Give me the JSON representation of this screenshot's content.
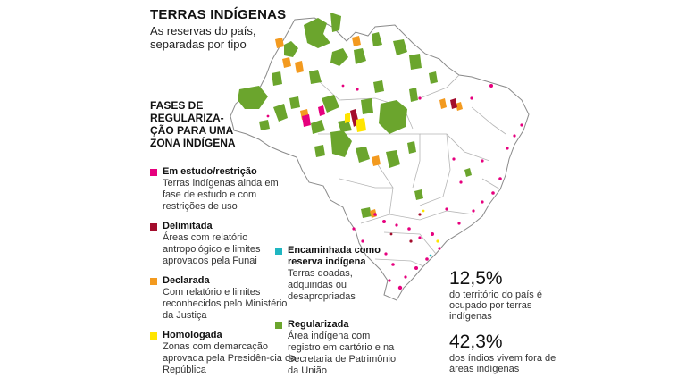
{
  "header": {
    "title": "TERRAS INDÍGENAS",
    "subtitle": "As reservas do país, separadas por tipo"
  },
  "phases_heading": "FASES DE REGULARIZA-ÇÃO PARA UMA ZONA INDÍGENA",
  "legend": [
    {
      "name": "Em estudo/restrição",
      "desc": "Terras indígenas ainda em fase de estudo e com restrições de uso",
      "color": "#e6007e"
    },
    {
      "name": "Delimitada",
      "desc": "Áreas com relatório antropológico e limites aprovados pela Funai",
      "color": "#a30d2d"
    },
    {
      "name": "Declarada",
      "desc": "Com relatório e limites reconhecidos pelo Ministério da Justiça",
      "color": "#f39a1f"
    },
    {
      "name": "Homologada",
      "desc": "Zonas com demarcação aprovada pela Presidên-cia da República",
      "color": "#ffe500"
    },
    {
      "name": "Encaminhada como reserva indígena",
      "desc": "Terras doadas, adquiridas ou desapropriadas",
      "color": "#1fb6c1"
    },
    {
      "name": "Regularizada",
      "desc": "Área indígena com registro em cartório e na Secretaria de Patrimônio da União",
      "color": "#6ba52d"
    }
  ],
  "stats": [
    {
      "value": "12,5%",
      "text": "do território do país é ocupado por terras indígenas"
    },
    {
      "value": "42,3%",
      "text": "dos índios vivem fora de áreas indígenas"
    }
  ],
  "colors": {
    "map_fill": "#ffffff",
    "map_border": "#8a8a8a"
  }
}
